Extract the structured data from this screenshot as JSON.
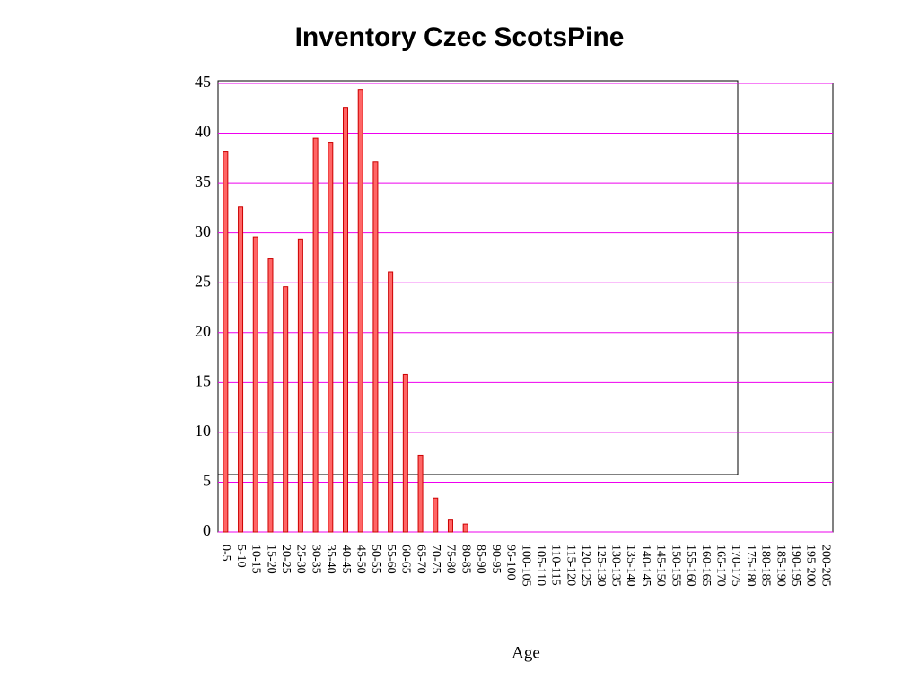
{
  "chart_data": {
    "type": "bar",
    "title": "Inventory Czec ScotsPine",
    "x_label": "Age",
    "categories": [
      "0-5",
      "5-10",
      "10-15",
      "15-20",
      "20-25",
      "25-30",
      "30-35",
      "35-40",
      "40-45",
      "45-50",
      "50-55",
      "55-60",
      "60-65",
      "65-70",
      "70-75",
      "75-80",
      "80-85",
      "85-90",
      "90-95",
      "95-100",
      "100-105",
      "105-110",
      "110-115",
      "115-120",
      "120-125",
      "125-130",
      "130-135",
      "135-140",
      "140-145",
      "145-150",
      "150-155",
      "155-160",
      "160-165",
      "165-170",
      "170-175",
      "175-180",
      "180-185",
      "185-190",
      "190-195",
      "195-200",
      "200-205"
    ],
    "values": [
      38.2,
      32.6,
      29.6,
      27.4,
      24.6,
      29.4,
      39.5,
      39.1,
      42.6,
      44.4,
      37.1,
      26.1,
      15.8,
      7.7,
      3.4,
      1.2,
      0.8,
      0,
      0,
      0,
      0,
      0,
      0,
      0,
      0,
      0,
      0,
      0,
      0,
      0,
      0,
      0,
      0,
      0,
      0,
      0,
      0,
      0,
      0,
      0,
      0
    ],
    "color": "#ff6666",
    "edge_color": "#cc0000",
    "grid_color": "#ee00ee",
    "ylim": [
      0,
      45
    ],
    "yticks": [
      0,
      5,
      10,
      15,
      20,
      25,
      30,
      35,
      40,
      45
    ],
    "grid": true
  }
}
